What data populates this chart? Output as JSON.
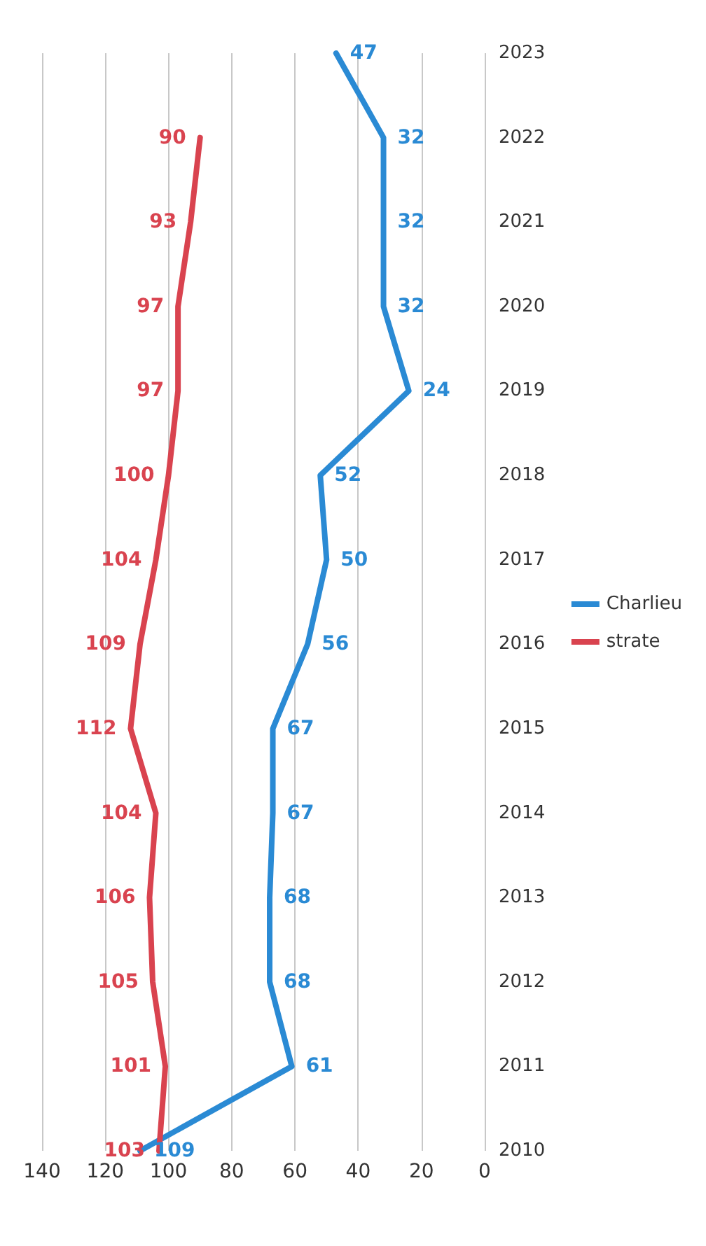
{
  "chart_data": {
    "type": "line",
    "orientation": "horizontal",
    "categories": [
      "2023",
      "2022",
      "2021",
      "2020",
      "2019",
      "2018",
      "2017",
      "2016",
      "2015",
      "2014",
      "2013",
      "2012",
      "2011",
      "2010"
    ],
    "series": [
      {
        "name": "Charlieu",
        "color": "#2a8ad4",
        "values": [
          47,
          32,
          32,
          32,
          24,
          52,
          50,
          56,
          67,
          67,
          68,
          68,
          61,
          109
        ]
      },
      {
        "name": "strate",
        "color": "#d9434f",
        "values": [
          null,
          90,
          93,
          97,
          97,
          100,
          104,
          109,
          112,
          104,
          106,
          105,
          101,
          103
        ]
      }
    ],
    "xlim": [
      140,
      0
    ],
    "xticks": [
      0,
      20,
      40,
      60,
      80,
      100,
      120,
      140
    ],
    "grid": "x",
    "legend": "right",
    "data_labels": true,
    "marker": "none",
    "line_style": "solid"
  }
}
